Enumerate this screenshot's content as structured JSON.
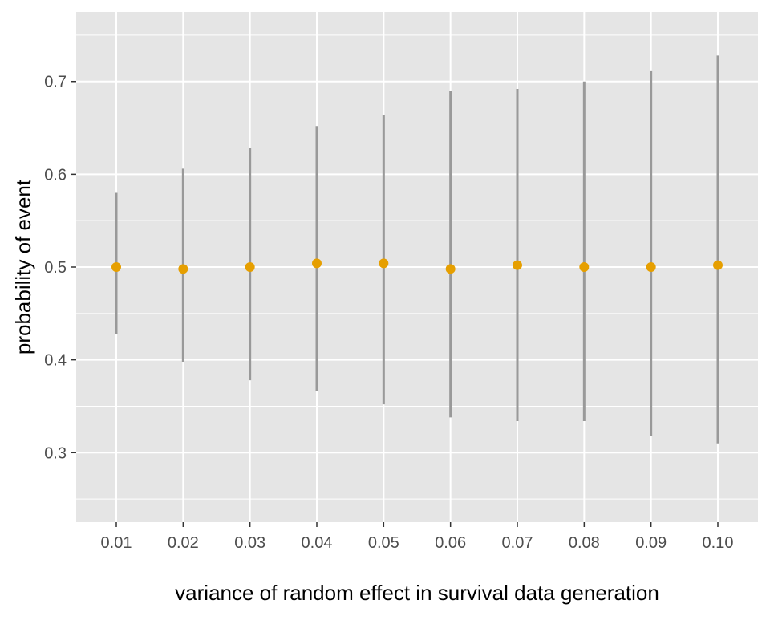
{
  "chart_data": {
    "type": "errorbar-point",
    "xlabel": "variance of random effect in survival data generation",
    "ylabel": "probability of event",
    "categories": [
      "0.01",
      "0.02",
      "0.03",
      "0.04",
      "0.05",
      "0.06",
      "0.07",
      "0.08",
      "0.09",
      "0.10"
    ],
    "y_ticks": [
      "0.3",
      "0.4",
      "0.5",
      "0.6",
      "0.7"
    ],
    "ylim": [
      0.225,
      0.775
    ],
    "series": [
      {
        "values": [
          0.5,
          0.498,
          0.5,
          0.504,
          0.504,
          0.498,
          0.502,
          0.5,
          0.5,
          0.502
        ],
        "lower": [
          0.428,
          0.398,
          0.378,
          0.366,
          0.352,
          0.338,
          0.334,
          0.334,
          0.318,
          0.31
        ],
        "upper": [
          0.58,
          0.606,
          0.628,
          0.652,
          0.664,
          0.69,
          0.692,
          0.7,
          0.712,
          0.728
        ]
      }
    ],
    "colors": {
      "point": "#E69F00",
      "errorbar": "#999999",
      "panel": "#E5E5E5",
      "grid": "#FFFFFF"
    },
    "grid": true
  }
}
